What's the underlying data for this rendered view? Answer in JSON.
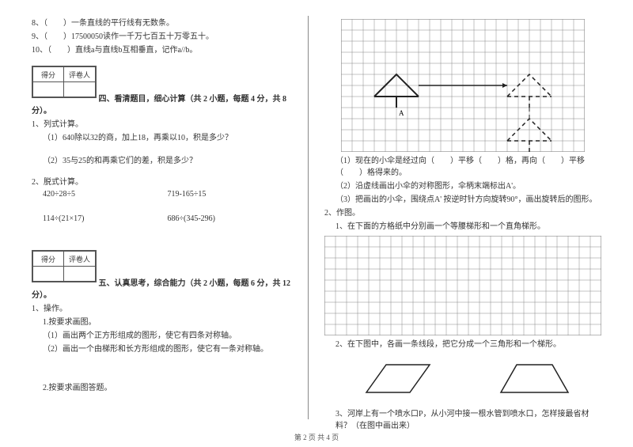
{
  "left": {
    "q8": "8、（　　）一条直线的平行线有无数条。",
    "q9": "9、（　　）17500050读作一千万七百五十万零五十。",
    "q10": "10、（　　）直线a与直线b互相垂直，记作a//b。",
    "score_header_left": "得分",
    "score_header_right": "评卷人",
    "section4_title": "四、看清题目，细心计算（共 2 小题，每题 4 分，共 8",
    "section4_cont": "分）。",
    "s4_q1": "1、列式计算。",
    "s4_q1a": "（1）640除以32的商，加上18，再乘以10，积是多少？",
    "s4_q1b": "（2）35与25的和再乘它们的差，积是多少？",
    "s4_q2": "2、脱式计算。",
    "calc_a": "420÷28÷5",
    "calc_b": "719-165÷15",
    "calc_c": "114÷(21×17)",
    "calc_d": "686÷(345-296)",
    "section5_title": "五、认真思考，综合能力（共 2 小题，每题 6 分，共 12",
    "section5_cont": "分）。",
    "s5_q1": "1、操作。",
    "s5_q1_1": "1.按要求画图。",
    "s5_q1_1a": "（1）画出两个正方形组成的图形，使它有四条对称轴。",
    "s5_q1_1b": "（2）画出一个由梯形和长方形组成的图形，使它有一条对称轴。",
    "s5_q1_2": "2.按要求画图答题。"
  },
  "right": {
    "r1": "（1）现在的小伞是经过向（　　）平移（　　）格，再向（　　）平移（　　）格得来的。",
    "r2": "（2）沿虚线画出小伞的对称图形，伞柄末端标出A'。",
    "r3": "（3）把画出的小伞，围绕点A' 按逆时针方向旋转90°，画出旋转后的图形。",
    "r_q2": "2、作图。",
    "r_q2_1": "1、在下面的方格纸中分别画一个等腰梯形和一个直角梯形。",
    "r_q2_2": "2、在下图中，各画一条线段，把它分成一个三角形和一个梯形。",
    "r_q3": "3、河岸上有一个喷水口P，从小河中接一根水管到喷水口，怎样接最省材料？（在图中画出来）",
    "label_A": "A"
  },
  "footer": "第 2 页 共 4 页",
  "style": {
    "grid_color": "#888888",
    "umbrella_solid": "#222222",
    "umbrella_dash": "#222222",
    "bg": "#ffffff",
    "cell": 14,
    "grid1_cols": 22,
    "grid1_rows": 12,
    "grid2_cols": 25,
    "grid2_rows": 9,
    "shape_stroke": "#222222"
  }
}
